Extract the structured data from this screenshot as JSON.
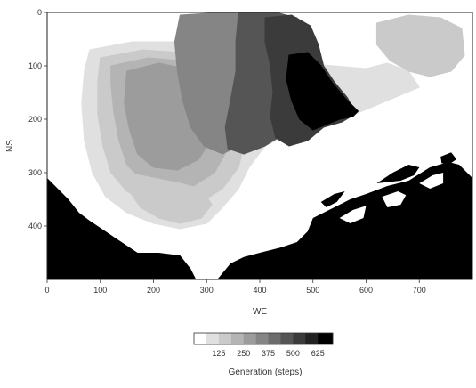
{
  "chart_data": {
    "type": "heatmap",
    "xlabel": "WE",
    "ylabel": "NS",
    "xlim": [
      0,
      800
    ],
    "ylim": [
      0,
      500
    ],
    "y_inverted": true,
    "x_ticks": [
      0,
      100,
      200,
      300,
      400,
      500,
      600,
      700
    ],
    "y_ticks": [
      0,
      100,
      200,
      300,
      400
    ],
    "colorbar": {
      "label": "Generation (steps)",
      "ticks": [
        125,
        250,
        375,
        500,
        625
      ],
      "range": [
        0,
        700
      ],
      "bins": [
        {
          "from": 0,
          "to": 62.5,
          "color": "#ffffff"
        },
        {
          "from": 62.5,
          "to": 125,
          "color": "#e0e0e0"
        },
        {
          "from": 125,
          "to": 187.5,
          "color": "#cacaca"
        },
        {
          "from": 187.5,
          "to": 250,
          "color": "#b4b4b4"
        },
        {
          "from": 250,
          "to": 312.5,
          "color": "#9c9c9c"
        },
        {
          "from": 312.5,
          "to": 375,
          "color": "#858585"
        },
        {
          "from": 375,
          "to": 437.5,
          "color": "#6c6c6c"
        },
        {
          "from": 437.5,
          "to": 500,
          "color": "#555555"
        },
        {
          "from": 500,
          "to": 562.5,
          "color": "#3b3b3b"
        },
        {
          "from": 562.5,
          "to": 625,
          "color": "#222222"
        },
        {
          "from": 625,
          "to": 700,
          "color": "#000000"
        }
      ]
    },
    "barrier_color": "#000000",
    "regions": [
      {
        "name": "outer-light",
        "value": 60,
        "polygon": [
          [
            60,
            30
          ],
          [
            150,
            15
          ],
          [
            260,
            20
          ],
          [
            330,
            40
          ],
          [
            420,
            55
          ],
          [
            500,
            65
          ],
          [
            570,
            80
          ],
          [
            640,
            60
          ],
          [
            700,
            40
          ],
          [
            760,
            45
          ],
          [
            790,
            90
          ],
          [
            780,
            150
          ],
          [
            700,
            180
          ],
          [
            620,
            215
          ],
          [
            560,
            235
          ],
          [
            480,
            250
          ],
          [
            420,
            275
          ],
          [
            390,
            315
          ],
          [
            370,
            350
          ],
          [
            350,
            395
          ],
          [
            320,
            440
          ],
          [
            280,
            470
          ],
          [
            230,
            460
          ],
          [
            180,
            440
          ],
          [
            130,
            415
          ],
          [
            80,
            385
          ],
          [
            40,
            335
          ],
          [
            25,
            260
          ],
          [
            30,
            160
          ],
          [
            40,
            80
          ]
        ]
      },
      {
        "name": "light-band",
        "value": 110,
        "polygon": [
          [
            80,
            70
          ],
          [
            160,
            55
          ],
          [
            250,
            55
          ],
          [
            330,
            65
          ],
          [
            410,
            80
          ],
          [
            480,
            95
          ],
          [
            540,
            100
          ],
          [
            600,
            105
          ],
          [
            640,
            95
          ],
          [
            680,
            110
          ],
          [
            700,
            140
          ],
          [
            640,
            165
          ],
          [
            580,
            190
          ],
          [
            520,
            210
          ],
          [
            460,
            225
          ],
          [
            410,
            250
          ],
          [
            380,
            290
          ],
          [
            360,
            330
          ],
          [
            330,
            365
          ],
          [
            300,
            395
          ],
          [
            250,
            405
          ],
          [
            200,
            395
          ],
          [
            150,
            375
          ],
          [
            110,
            345
          ],
          [
            85,
            300
          ],
          [
            70,
            240
          ],
          [
            65,
            170
          ],
          [
            70,
            110
          ]
        ]
      },
      {
        "name": "west-gray-outer",
        "value": 180,
        "polygon": [
          [
            100,
            85
          ],
          [
            180,
            70
          ],
          [
            250,
            75
          ],
          [
            310,
            90
          ],
          [
            350,
            120
          ],
          [
            370,
            170
          ],
          [
            375,
            230
          ],
          [
            360,
            290
          ],
          [
            330,
            330
          ],
          [
            290,
            355
          ],
          [
            240,
            365
          ],
          [
            190,
            355
          ],
          [
            150,
            335
          ],
          [
            120,
            300
          ],
          [
            105,
            250
          ],
          [
            95,
            190
          ],
          [
            95,
            130
          ]
        ]
      },
      {
        "name": "west-gray-mid",
        "value": 230,
        "polygon": [
          [
            120,
            100
          ],
          [
            190,
            85
          ],
          [
            250,
            90
          ],
          [
            300,
            110
          ],
          [
            330,
            150
          ],
          [
            345,
            200
          ],
          [
            340,
            255
          ],
          [
            315,
            300
          ],
          [
            275,
            325
          ],
          [
            225,
            330
          ],
          [
            180,
            315
          ],
          [
            150,
            285
          ],
          [
            135,
            240
          ],
          [
            125,
            185
          ],
          [
            120,
            135
          ]
        ]
      },
      {
        "name": "west-gray-inner",
        "value": 290,
        "polygon": [
          [
            150,
            110
          ],
          [
            210,
            95
          ],
          [
            260,
            105
          ],
          [
            295,
            135
          ],
          [
            315,
            185
          ],
          [
            310,
            235
          ],
          [
            285,
            275
          ],
          [
            245,
            295
          ],
          [
            200,
            290
          ],
          [
            170,
            265
          ],
          [
            155,
            220
          ],
          [
            145,
            170
          ]
        ]
      },
      {
        "name": "east-upper-light",
        "value": 140,
        "polygon": [
          [
            620,
            20
          ],
          [
            680,
            5
          ],
          [
            740,
            10
          ],
          [
            780,
            30
          ],
          [
            785,
            80
          ],
          [
            760,
            110
          ],
          [
            720,
            120
          ],
          [
            680,
            110
          ],
          [
            645,
            90
          ],
          [
            620,
            60
          ]
        ]
      },
      {
        "name": "central-north",
        "value": 350,
        "polygon": [
          [
            250,
            5
          ],
          [
            330,
            0
          ],
          [
            400,
            5
          ],
          [
            420,
            40
          ],
          [
            415,
            90
          ],
          [
            400,
            150
          ],
          [
            385,
            210
          ],
          [
            360,
            250
          ],
          [
            330,
            265
          ],
          [
            295,
            250
          ],
          [
            270,
            215
          ],
          [
            255,
            165
          ],
          [
            245,
            110
          ],
          [
            240,
            55
          ]
        ]
      },
      {
        "name": "central-dark",
        "value": 440,
        "polygon": [
          [
            360,
            0
          ],
          [
            430,
            0
          ],
          [
            470,
            10
          ],
          [
            490,
            40
          ],
          [
            500,
            90
          ],
          [
            495,
            140
          ],
          [
            480,
            185
          ],
          [
            450,
            225
          ],
          [
            410,
            250
          ],
          [
            370,
            265
          ],
          [
            340,
            255
          ],
          [
            335,
            215
          ],
          [
            345,
            165
          ],
          [
            355,
            110
          ],
          [
            355,
            55
          ]
        ]
      },
      {
        "name": "northeast-darker",
        "value": 530,
        "polygon": [
          [
            410,
            10
          ],
          [
            460,
            5
          ],
          [
            495,
            25
          ],
          [
            510,
            60
          ],
          [
            520,
            100
          ],
          [
            540,
            130
          ],
          [
            565,
            160
          ],
          [
            580,
            190
          ],
          [
            555,
            205
          ],
          [
            520,
            215
          ],
          [
            490,
            240
          ],
          [
            455,
            250
          ],
          [
            430,
            235
          ],
          [
            420,
            195
          ],
          [
            425,
            150
          ],
          [
            420,
            100
          ],
          [
            410,
            55
          ]
        ]
      },
      {
        "name": "northeast-darkest",
        "value": 650,
        "polygon": [
          [
            455,
            80
          ],
          [
            490,
            75
          ],
          [
            515,
            100
          ],
          [
            535,
            130
          ],
          [
            560,
            160
          ],
          [
            585,
            185
          ],
          [
            575,
            195
          ],
          [
            550,
            200
          ],
          [
            525,
            210
          ],
          [
            500,
            220
          ],
          [
            475,
            200
          ],
          [
            460,
            165
          ],
          [
            450,
            125
          ]
        ]
      },
      {
        "name": "southwest-gray",
        "value": 170,
        "polygon": [
          [
            150,
            300
          ],
          [
            200,
            310
          ],
          [
            250,
            320
          ],
          [
            290,
            330
          ],
          [
            310,
            360
          ],
          [
            290,
            385
          ],
          [
            250,
            395
          ],
          [
            210,
            385
          ],
          [
            175,
            365
          ],
          [
            155,
            335
          ]
        ]
      }
    ],
    "barriers": [
      {
        "name": "southwest-landmass",
        "polygon": [
          [
            0,
            310
          ],
          [
            20,
            330
          ],
          [
            40,
            350
          ],
          [
            60,
            375
          ],
          [
            80,
            390
          ],
          [
            110,
            410
          ],
          [
            140,
            430
          ],
          [
            170,
            450
          ],
          [
            210,
            450
          ],
          [
            250,
            455
          ],
          [
            270,
            480
          ],
          [
            280,
            500
          ],
          [
            0,
            500
          ]
        ]
      },
      {
        "name": "southeast-landmass",
        "polygon": [
          [
            320,
            500
          ],
          [
            345,
            470
          ],
          [
            370,
            458
          ],
          [
            400,
            450
          ],
          [
            440,
            440
          ],
          [
            470,
            430
          ],
          [
            490,
            410
          ],
          [
            500,
            385
          ],
          [
            530,
            370
          ],
          [
            570,
            350
          ],
          [
            600,
            340
          ],
          [
            640,
            325
          ],
          [
            680,
            315
          ],
          [
            720,
            290
          ],
          [
            755,
            280
          ],
          [
            775,
            285
          ],
          [
            790,
            300
          ],
          [
            800,
            310
          ],
          [
            800,
            500
          ]
        ]
      },
      {
        "name": "peninsula-east",
        "polygon": [
          [
            620,
            320
          ],
          [
            650,
            300
          ],
          [
            680,
            285
          ],
          [
            700,
            290
          ],
          [
            690,
            305
          ],
          [
            665,
            315
          ]
        ]
      },
      {
        "name": "islet-1",
        "polygon": [
          [
            515,
            355
          ],
          [
            540,
            340
          ],
          [
            560,
            335
          ],
          [
            545,
            355
          ],
          [
            525,
            365
          ]
        ]
      },
      {
        "name": "islet-2",
        "polygon": [
          [
            740,
            270
          ],
          [
            760,
            262
          ],
          [
            770,
            275
          ],
          [
            755,
            285
          ],
          [
            742,
            282
          ]
        ]
      }
    ],
    "holes": [
      {
        "name": "harbour-pool-1",
        "polygon": [
          [
            550,
            385
          ],
          [
            575,
            370
          ],
          [
            600,
            362
          ],
          [
            595,
            385
          ],
          [
            570,
            395
          ]
        ]
      },
      {
        "name": "harbour-pool-2",
        "polygon": [
          [
            630,
            345
          ],
          [
            660,
            335
          ],
          [
            675,
            342
          ],
          [
            665,
            360
          ],
          [
            640,
            365
          ]
        ]
      },
      {
        "name": "harbour-pool-3",
        "polygon": [
          [
            700,
            320
          ],
          [
            725,
            305
          ],
          [
            745,
            300
          ],
          [
            745,
            320
          ],
          [
            720,
            330
          ]
        ]
      }
    ]
  }
}
